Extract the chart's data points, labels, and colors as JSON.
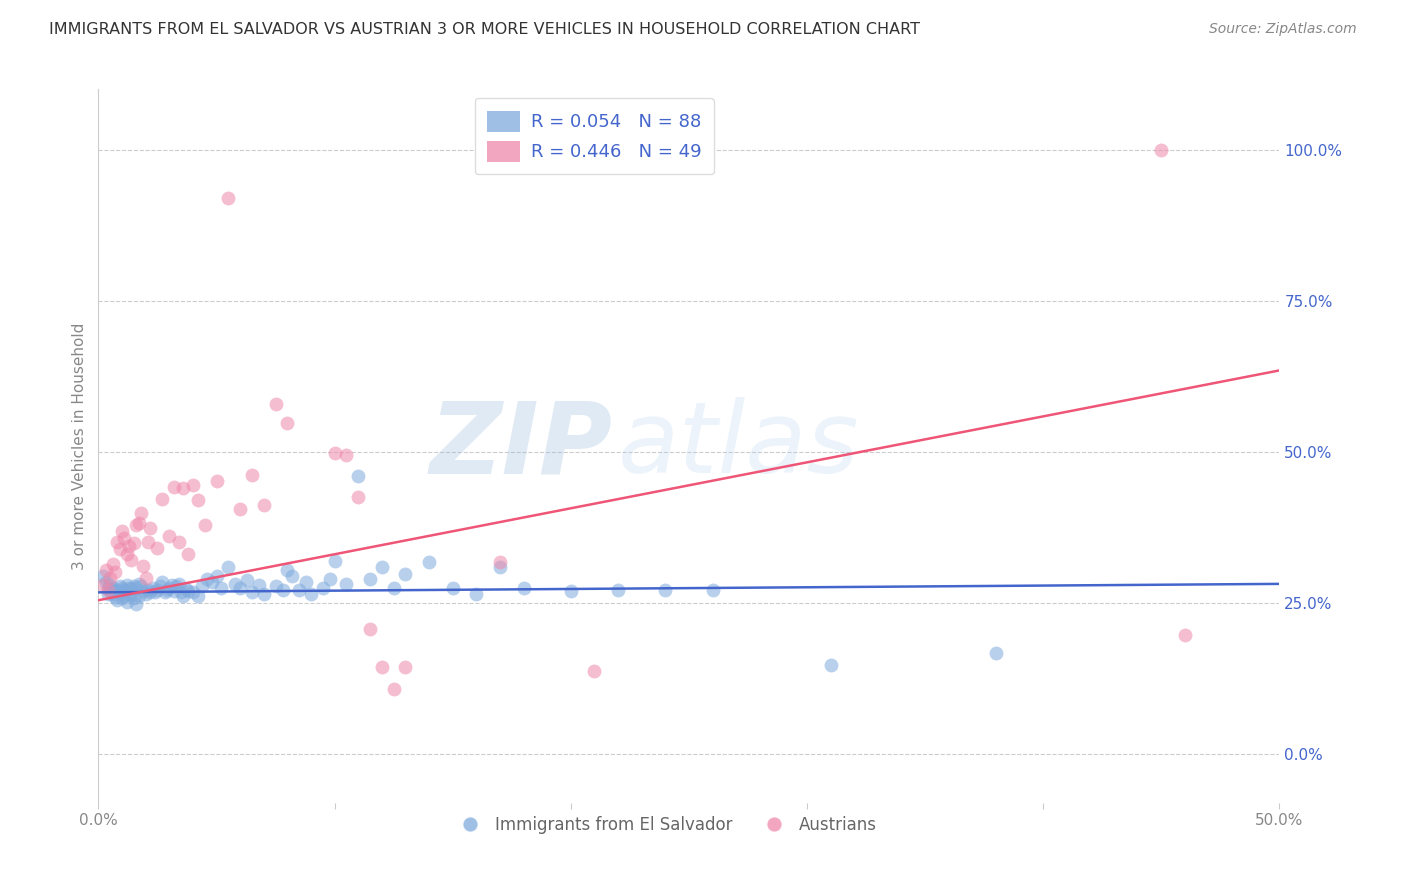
{
  "title": "IMMIGRANTS FROM EL SALVADOR VS AUSTRIAN 3 OR MORE VEHICLES IN HOUSEHOLD CORRELATION CHART",
  "source": "Source: ZipAtlas.com",
  "ylabel": "3 or more Vehicles in Household",
  "watermark_zip": "ZIP",
  "watermark_atlas": "atlas",
  "legend_blue_R": "R = 0.054",
  "legend_blue_N": "N = 88",
  "legend_pink_R": "R = 0.446",
  "legend_pink_N": "N = 49",
  "xlim": [
    0.0,
    0.5
  ],
  "ylim": [
    -0.08,
    1.1
  ],
  "x_ticks": [
    0.0,
    0.1,
    0.2,
    0.3,
    0.4,
    0.5
  ],
  "x_tick_labels": [
    "0.0%",
    "",
    "",
    "",
    "",
    "50.0%"
  ],
  "y_ticks_right": [
    0.0,
    0.25,
    0.5,
    0.75,
    1.0
  ],
  "y_tick_labels_right": [
    "0.0%",
    "25.0%",
    "50.0%",
    "75.0%",
    "100.0%"
  ],
  "grid_color": "#cccccc",
  "background_color": "#ffffff",
  "blue_color": "#7faadd",
  "pink_color": "#ee88aa",
  "blue_line_color": "#4466cc",
  "pink_line_color": "#ee5577",
  "title_color": "#333333",
  "source_color": "#888888",
  "legend_text_color": "#4466cc",
  "right_axis_color": "#4466cc",
  "bottom_label_color": "#666666",
  "blue_scatter": [
    [
      0.002,
      0.295
    ],
    [
      0.003,
      0.285
    ],
    [
      0.004,
      0.275
    ],
    [
      0.004,
      0.265
    ],
    [
      0.005,
      0.28
    ],
    [
      0.005,
      0.27
    ],
    [
      0.006,
      0.275
    ],
    [
      0.006,
      0.265
    ],
    [
      0.007,
      0.27
    ],
    [
      0.007,
      0.26
    ],
    [
      0.008,
      0.272
    ],
    [
      0.008,
      0.255
    ],
    [
      0.009,
      0.278
    ],
    [
      0.009,
      0.268
    ],
    [
      0.01,
      0.275
    ],
    [
      0.01,
      0.258
    ],
    [
      0.011,
      0.272
    ],
    [
      0.011,
      0.262
    ],
    [
      0.012,
      0.28
    ],
    [
      0.012,
      0.252
    ],
    [
      0.013,
      0.276
    ],
    [
      0.013,
      0.266
    ],
    [
      0.014,
      0.274
    ],
    [
      0.014,
      0.264
    ],
    [
      0.015,
      0.278
    ],
    [
      0.015,
      0.258
    ],
    [
      0.016,
      0.276
    ],
    [
      0.016,
      0.248
    ],
    [
      0.017,
      0.282
    ],
    [
      0.017,
      0.262
    ],
    [
      0.018,
      0.279
    ],
    [
      0.019,
      0.27
    ],
    [
      0.02,
      0.265
    ],
    [
      0.021,
      0.272
    ],
    [
      0.022,
      0.269
    ],
    [
      0.023,
      0.275
    ],
    [
      0.024,
      0.268
    ],
    [
      0.025,
      0.272
    ],
    [
      0.026,
      0.278
    ],
    [
      0.027,
      0.285
    ],
    [
      0.028,
      0.268
    ],
    [
      0.029,
      0.272
    ],
    [
      0.03,
      0.276
    ],
    [
      0.031,
      0.28
    ],
    [
      0.032,
      0.27
    ],
    [
      0.033,
      0.278
    ],
    [
      0.034,
      0.282
    ],
    [
      0.035,
      0.268
    ],
    [
      0.036,
      0.262
    ],
    [
      0.037,
      0.274
    ],
    [
      0.038,
      0.27
    ],
    [
      0.04,
      0.268
    ],
    [
      0.042,
      0.262
    ],
    [
      0.044,
      0.278
    ],
    [
      0.046,
      0.29
    ],
    [
      0.048,
      0.285
    ],
    [
      0.05,
      0.295
    ],
    [
      0.052,
      0.275
    ],
    [
      0.055,
      0.31
    ],
    [
      0.058,
      0.282
    ],
    [
      0.06,
      0.276
    ],
    [
      0.063,
      0.288
    ],
    [
      0.065,
      0.268
    ],
    [
      0.068,
      0.28
    ],
    [
      0.07,
      0.265
    ],
    [
      0.075,
      0.278
    ],
    [
      0.078,
      0.272
    ],
    [
      0.08,
      0.305
    ],
    [
      0.082,
      0.295
    ],
    [
      0.085,
      0.272
    ],
    [
      0.088,
      0.285
    ],
    [
      0.09,
      0.265
    ],
    [
      0.095,
      0.275
    ],
    [
      0.098,
      0.29
    ],
    [
      0.1,
      0.32
    ],
    [
      0.105,
      0.282
    ],
    [
      0.11,
      0.46
    ],
    [
      0.115,
      0.29
    ],
    [
      0.12,
      0.31
    ],
    [
      0.125,
      0.275
    ],
    [
      0.13,
      0.298
    ],
    [
      0.14,
      0.318
    ],
    [
      0.15,
      0.275
    ],
    [
      0.16,
      0.265
    ],
    [
      0.17,
      0.31
    ],
    [
      0.18,
      0.275
    ],
    [
      0.2,
      0.27
    ],
    [
      0.22,
      0.272
    ],
    [
      0.24,
      0.272
    ],
    [
      0.26,
      0.272
    ],
    [
      0.31,
      0.148
    ],
    [
      0.38,
      0.168
    ]
  ],
  "pink_scatter": [
    [
      0.002,
      0.28
    ],
    [
      0.003,
      0.305
    ],
    [
      0.004,
      0.272
    ],
    [
      0.005,
      0.292
    ],
    [
      0.006,
      0.315
    ],
    [
      0.007,
      0.302
    ],
    [
      0.008,
      0.352
    ],
    [
      0.009,
      0.34
    ],
    [
      0.01,
      0.37
    ],
    [
      0.011,
      0.358
    ],
    [
      0.012,
      0.332
    ],
    [
      0.013,
      0.345
    ],
    [
      0.014,
      0.322
    ],
    [
      0.015,
      0.35
    ],
    [
      0.016,
      0.38
    ],
    [
      0.017,
      0.382
    ],
    [
      0.018,
      0.4
    ],
    [
      0.019,
      0.312
    ],
    [
      0.02,
      0.292
    ],
    [
      0.021,
      0.352
    ],
    [
      0.022,
      0.375
    ],
    [
      0.025,
      0.342
    ],
    [
      0.027,
      0.422
    ],
    [
      0.03,
      0.362
    ],
    [
      0.032,
      0.442
    ],
    [
      0.034,
      0.352
    ],
    [
      0.036,
      0.44
    ],
    [
      0.038,
      0.332
    ],
    [
      0.04,
      0.445
    ],
    [
      0.042,
      0.42
    ],
    [
      0.045,
      0.38
    ],
    [
      0.05,
      0.452
    ],
    [
      0.055,
      0.92
    ],
    [
      0.06,
      0.405
    ],
    [
      0.065,
      0.462
    ],
    [
      0.07,
      0.412
    ],
    [
      0.075,
      0.58
    ],
    [
      0.08,
      0.548
    ],
    [
      0.1,
      0.498
    ],
    [
      0.105,
      0.495
    ],
    [
      0.11,
      0.425
    ],
    [
      0.115,
      0.208
    ],
    [
      0.12,
      0.145
    ],
    [
      0.125,
      0.108
    ],
    [
      0.13,
      0.145
    ],
    [
      0.17,
      0.318
    ],
    [
      0.21,
      0.138
    ],
    [
      0.45,
      1.0
    ],
    [
      0.46,
      0.198
    ]
  ],
  "blue_line_x": [
    0.0,
    0.5
  ],
  "blue_line_y": [
    0.268,
    0.282
  ],
  "pink_line_x": [
    0.0,
    0.5
  ],
  "pink_line_y": [
    0.255,
    0.635
  ],
  "scatter_size": 100,
  "scatter_alpha": 0.55,
  "line_width": 1.8
}
